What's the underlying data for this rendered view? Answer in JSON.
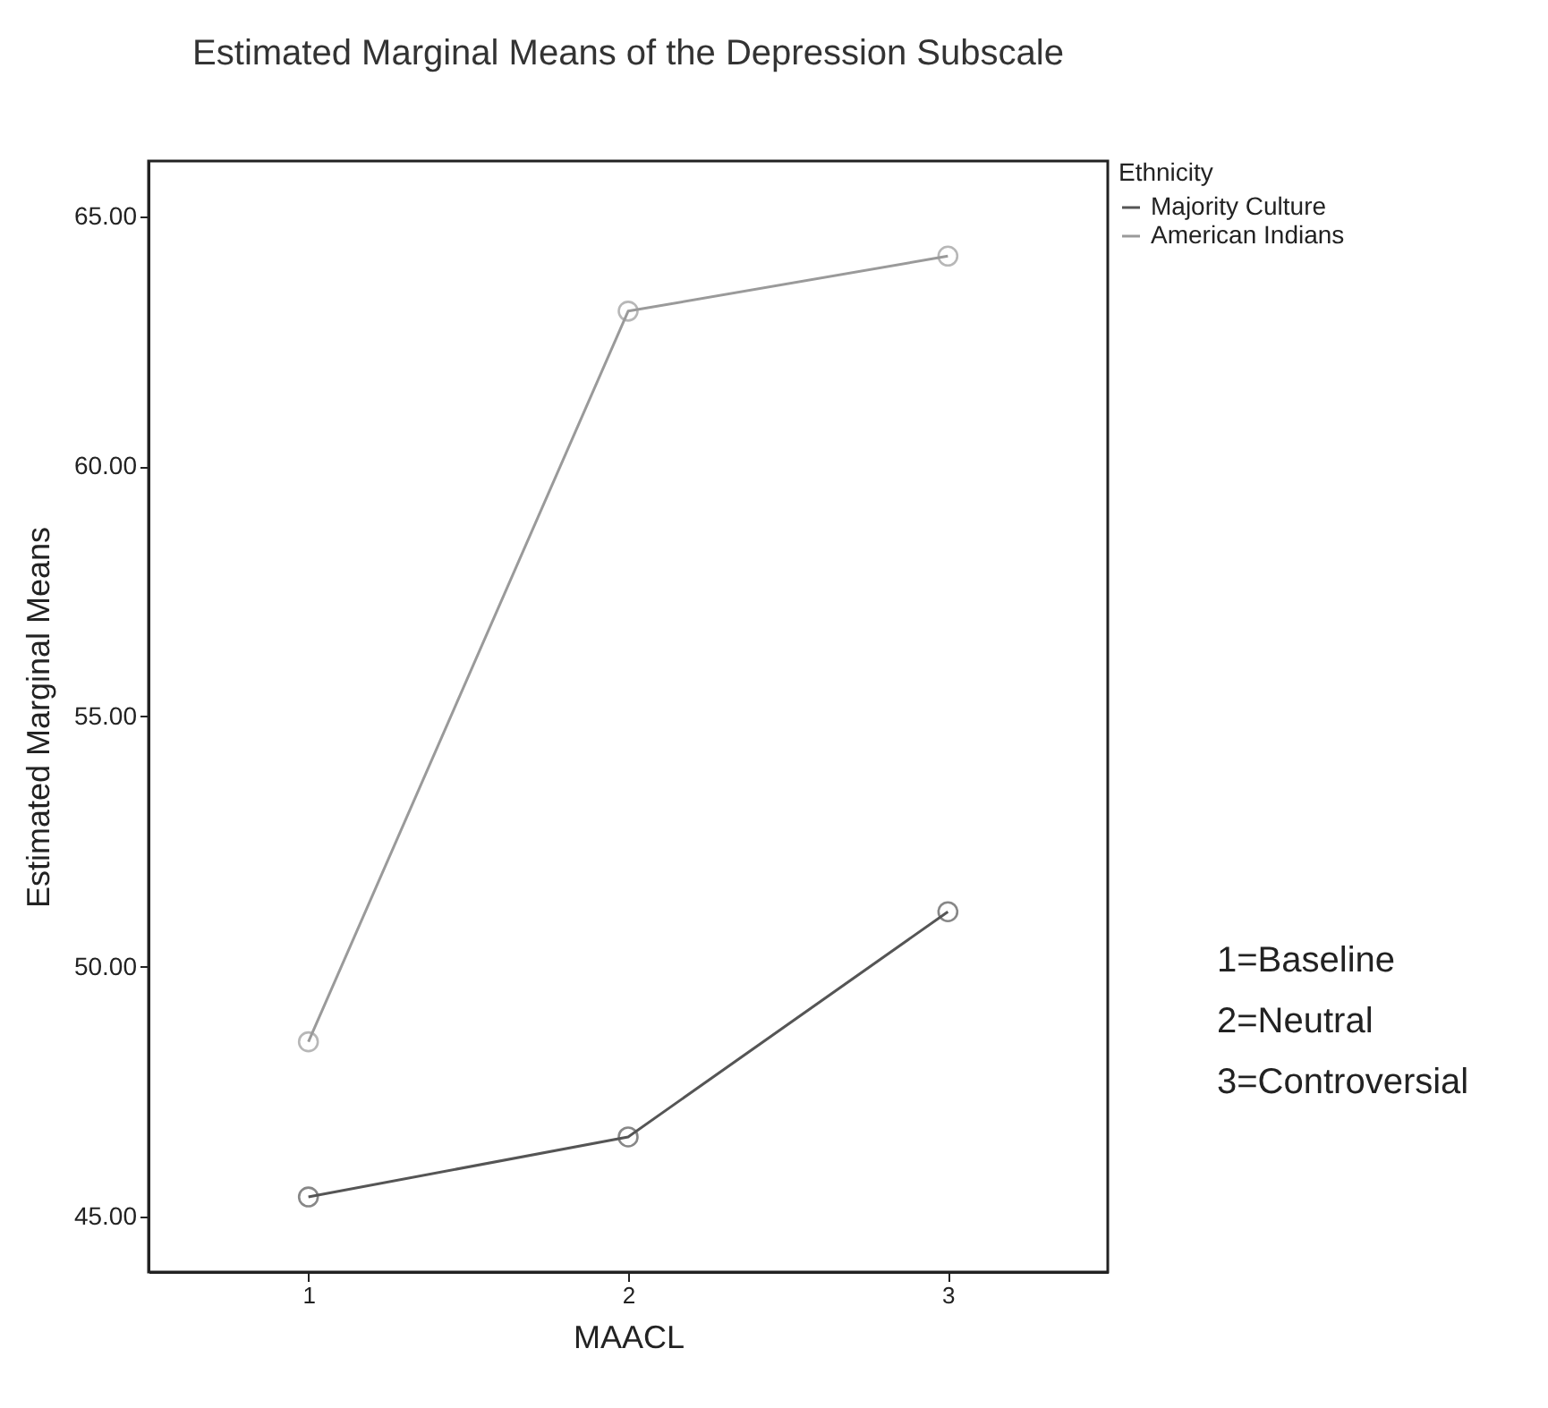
{
  "chart_data": {
    "type": "line",
    "title": "Estimated Marginal Means of the Depression Subscale",
    "xlabel": "MAACL",
    "ylabel": "Estimated Marginal Means",
    "legend_title": "Ethnicity",
    "categories": [
      "1",
      "2",
      "3"
    ],
    "series": [
      {
        "name": "Majority Culture",
        "color": "#555555",
        "values": [
          45.4,
          46.6,
          51.1
        ]
      },
      {
        "name": "American Indians",
        "color": "#9a9a9a",
        "values": [
          48.5,
          63.1,
          64.2
        ]
      }
    ],
    "ylim": [
      43.9,
      66.1
    ],
    "yticks": [
      {
        "value": 45,
        "label": "45.00"
      },
      {
        "value": 50,
        "label": "50.00"
      },
      {
        "value": 55,
        "label": "55.00"
      },
      {
        "value": 60,
        "label": "60.00"
      },
      {
        "value": 65,
        "label": "65.00"
      }
    ],
    "annotations": [
      "1=Baseline",
      "2=Neutral",
      "3=Controversial"
    ],
    "legend": "top right",
    "marker": "circle",
    "line_style": "solid",
    "grid": false
  }
}
